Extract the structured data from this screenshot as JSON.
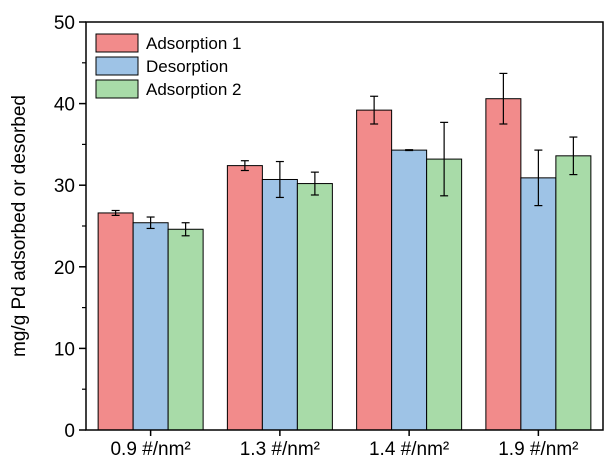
{
  "chart_data": {
    "type": "bar",
    "ylabel": "mg/g Pd adsorbed or desorbed",
    "xlabel": "",
    "ylim": [
      0,
      50
    ],
    "yticks": [
      0,
      10,
      20,
      30,
      40,
      50
    ],
    "categories": [
      "0.9 #/nm²",
      "1.3 #/nm²",
      "1.4 #/nm²",
      "1.9 #/nm²"
    ],
    "series": [
      {
        "name": "Adsorption 1",
        "color": "#f28b8b",
        "values": [
          26.6,
          32.4,
          39.2,
          40.6
        ],
        "errors": [
          0.3,
          0.6,
          1.7,
          3.1
        ]
      },
      {
        "name": "Desorption",
        "color": "#9ec3e6",
        "values": [
          25.4,
          30.7,
          34.3,
          30.9
        ],
        "errors": [
          0.7,
          2.2,
          0.05,
          3.4
        ]
      },
      {
        "name": "Adsorption 2",
        "color": "#a8dba8",
        "values": [
          24.6,
          30.2,
          33.2,
          33.6
        ],
        "errors": [
          0.8,
          1.4,
          4.5,
          2.3
        ]
      }
    ],
    "legend_position": "top-left",
    "grid": false
  }
}
